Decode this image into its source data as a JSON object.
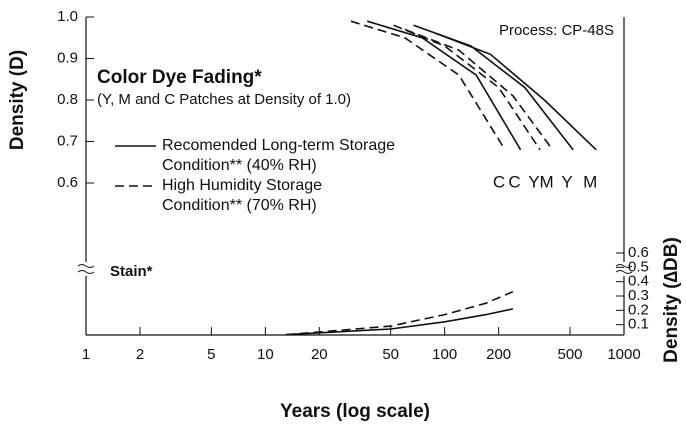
{
  "chart_data": {
    "type": "line",
    "title": "Color Dye Fading*",
    "subtitle": "(Y, M and C Patches at Density of 1.0)",
    "annotation": "Process: CP-48S",
    "stain_label": "Stain*",
    "x_label": "Years (log scale)",
    "y_label": "Density (D)",
    "y2_label": "Density (∆DB)",
    "log_x": true,
    "xlim": [
      1,
      1000
    ],
    "xticks": [
      1,
      2,
      5,
      10,
      20,
      50,
      100,
      200,
      500,
      1000
    ],
    "ylim": [
      0.6,
      1.0
    ],
    "yticks": [
      0.6,
      0.7,
      0.8,
      0.9,
      {
        "value": 1.0,
        "label": "1.0"
      }
    ],
    "y2lim": [
      0,
      0.6
    ],
    "y2ticks": [
      0.1,
      0.2,
      0.3,
      0.4,
      0.5,
      0.6
    ],
    "legend": [
      {
        "dash": "solid",
        "label_lines": [
          "Recomended Long-term Storage",
          "Condition** (40% RH)"
        ]
      },
      {
        "dash": "dashed",
        "label_lines": [
          "High Humidity Storage",
          "Condition** (70% RH)"
        ]
      }
    ],
    "series": [
      {
        "name": "C",
        "dash": "dashed",
        "color": "#111",
        "x": [
          30,
          60,
          120,
          217
        ],
        "values": [
          0.99,
          0.95,
          0.86,
          0.68
        ]
      },
      {
        "name": "C",
        "dash": "solid",
        "color": "#111",
        "x": [
          37,
          75,
          150,
          265
        ],
        "values": [
          0.99,
          0.95,
          0.86,
          0.68
        ]
      },
      {
        "name": "Y",
        "dash": "dashed",
        "color": "#111",
        "x": [
          52,
          100,
          200,
          340
        ],
        "values": [
          0.98,
          0.93,
          0.83,
          0.68
        ]
      },
      {
        "name": "M",
        "dash": "dashed",
        "color": "#111",
        "x": [
          60,
          120,
          240,
          400
        ],
        "values": [
          0.97,
          0.92,
          0.81,
          0.68
        ]
      },
      {
        "name": "Y",
        "dash": "solid",
        "color": "#111",
        "x": [
          67,
          140,
          280,
          520
        ],
        "values": [
          0.98,
          0.93,
          0.83,
          0.68
        ]
      },
      {
        "name": "M",
        "dash": "solid",
        "color": "#111",
        "x": [
          90,
          180,
          360,
          700
        ],
        "values": [
          0.96,
          0.91,
          0.8,
          0.68
        ]
      },
      {
        "dash": "dashed",
        "color": "#111",
        "axis": "y2",
        "x": [
          13,
          50,
          100,
          170,
          240
        ],
        "values": [
          0.03,
          0.09,
          0.17,
          0.25,
          0.33
        ]
      },
      {
        "dash": "solid",
        "color": "#111",
        "axis": "y2",
        "x": [
          13,
          50,
          100,
          170,
          240
        ],
        "values": [
          0.03,
          0.07,
          0.12,
          0.17,
          0.21
        ]
      }
    ]
  }
}
